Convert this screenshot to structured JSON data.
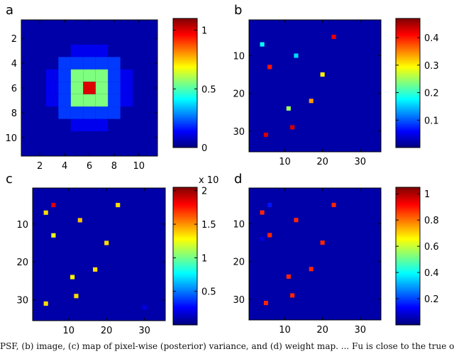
{
  "colors": {
    "background": "#0000a8",
    "jet": [
      "#00007f",
      "#0000ff",
      "#007fff",
      "#00ffff",
      "#7fff7f",
      "#ffff00",
      "#ff7f00",
      "#ff0000",
      "#7f0000"
    ]
  },
  "caption": "PSF, (b) image, (c) map of pixel-wise (posterior) variance, and (d) weight map. ... Fu is close to the true on",
  "chart_data": [
    {
      "panel": "a",
      "type": "heatmap",
      "xlim": [
        0.5,
        11.5
      ],
      "ylim": [
        0.5,
        11.5
      ],
      "xticks": [
        "2",
        "4",
        "6",
        "8",
        "10"
      ],
      "yticks": [
        "2",
        "4",
        "6",
        "8",
        "10"
      ],
      "colorbar": {
        "ticks": [
          "1",
          "0.5",
          "0"
        ],
        "range": [
          0,
          1.1
        ]
      },
      "cells": [
        {
          "x": 6,
          "y": 6,
          "v": 1.0
        },
        {
          "x": 5,
          "y": 5,
          "v": 0.55
        },
        {
          "x": 6,
          "y": 5,
          "v": 0.55
        },
        {
          "x": 7,
          "y": 5,
          "v": 0.55
        },
        {
          "x": 5,
          "y": 6,
          "v": 0.55
        },
        {
          "x": 7,
          "y": 6,
          "v": 0.55
        },
        {
          "x": 5,
          "y": 7,
          "v": 0.55
        },
        {
          "x": 6,
          "y": 7,
          "v": 0.55
        },
        {
          "x": 7,
          "y": 7,
          "v": 0.55
        },
        {
          "x": 4,
          "y": 4,
          "v": 0.2
        },
        {
          "x": 5,
          "y": 4,
          "v": 0.2
        },
        {
          "x": 6,
          "y": 4,
          "v": 0.2
        },
        {
          "x": 7,
          "y": 4,
          "v": 0.2
        },
        {
          "x": 8,
          "y": 4,
          "v": 0.2
        },
        {
          "x": 4,
          "y": 5,
          "v": 0.2
        },
        {
          "x": 8,
          "y": 5,
          "v": 0.2
        },
        {
          "x": 4,
          "y": 6,
          "v": 0.2
        },
        {
          "x": 8,
          "y": 6,
          "v": 0.2
        },
        {
          "x": 4,
          "y": 7,
          "v": 0.2
        },
        {
          "x": 8,
          "y": 7,
          "v": 0.2
        },
        {
          "x": 4,
          "y": 8,
          "v": 0.2
        },
        {
          "x": 5,
          "y": 8,
          "v": 0.2
        },
        {
          "x": 6,
          "y": 8,
          "v": 0.2
        },
        {
          "x": 7,
          "y": 8,
          "v": 0.2
        },
        {
          "x": 8,
          "y": 8,
          "v": 0.2
        },
        {
          "x": 5,
          "y": 3,
          "v": 0.12
        },
        {
          "x": 6,
          "y": 3,
          "v": 0.12
        },
        {
          "x": 7,
          "y": 3,
          "v": 0.12
        },
        {
          "x": 5,
          "y": 9,
          "v": 0.12
        },
        {
          "x": 6,
          "y": 9,
          "v": 0.12
        },
        {
          "x": 7,
          "y": 9,
          "v": 0.12
        },
        {
          "x": 3,
          "y": 5,
          "v": 0.12
        },
        {
          "x": 3,
          "y": 6,
          "v": 0.12
        },
        {
          "x": 3,
          "y": 7,
          "v": 0.12
        },
        {
          "x": 9,
          "y": 5,
          "v": 0.12
        },
        {
          "x": 9,
          "y": 6,
          "v": 0.12
        },
        {
          "x": 9,
          "y": 7,
          "v": 0.12
        }
      ]
    },
    {
      "panel": "b",
      "type": "heatmap",
      "xlim": [
        0.5,
        35.5
      ],
      "ylim": [
        0.5,
        35.5
      ],
      "xticks": [
        "10",
        "20",
        "30"
      ],
      "yticks": [
        "10",
        "20",
        "30"
      ],
      "colorbar": {
        "ticks": [
          "0.4",
          "0.3",
          "0.2",
          "0.1"
        ],
        "range": [
          0,
          0.47
        ]
      },
      "points": [
        {
          "x": 4,
          "y": 7,
          "v": 0.18
        },
        {
          "x": 13,
          "y": 10,
          "v": 0.16
        },
        {
          "x": 23,
          "y": 5,
          "v": 0.42
        },
        {
          "x": 6,
          "y": 13,
          "v": 0.4
        },
        {
          "x": 20,
          "y": 15,
          "v": 0.3
        },
        {
          "x": 17,
          "y": 22,
          "v": 0.34
        },
        {
          "x": 11,
          "y": 24,
          "v": 0.25
        },
        {
          "x": 12,
          "y": 29,
          "v": 0.43
        },
        {
          "x": 5,
          "y": 31,
          "v": 0.43
        }
      ]
    },
    {
      "panel": "c",
      "type": "heatmap",
      "xlim": [
        0.5,
        35.5
      ],
      "ylim": [
        0.5,
        35.5
      ],
      "xticks": [
        "10",
        "20",
        "30"
      ],
      "yticks": [
        "10",
        "20",
        "30"
      ],
      "colorbar": {
        "ticks": [
          "2",
          "1.5",
          "1",
          "0.5"
        ],
        "exponent_label": "x 10",
        "range": [
          0,
          2.05
        ]
      },
      "points": [
        {
          "x": 6,
          "y": 5,
          "v": 1.85
        },
        {
          "x": 4,
          "y": 7,
          "v": 1.35
        },
        {
          "x": 23,
          "y": 5,
          "v": 1.35
        },
        {
          "x": 13,
          "y": 9,
          "v": 1.4
        },
        {
          "x": 6,
          "y": 13,
          "v": 1.25
        },
        {
          "x": 20,
          "y": 15,
          "v": 1.35
        },
        {
          "x": 17,
          "y": 22,
          "v": 1.35
        },
        {
          "x": 11,
          "y": 24,
          "v": 1.3
        },
        {
          "x": 12,
          "y": 29,
          "v": 1.35
        },
        {
          "x": 4,
          "y": 31,
          "v": 1.35
        },
        {
          "x": 30,
          "y": 32,
          "v": 0.2
        }
      ]
    },
    {
      "panel": "d",
      "type": "heatmap",
      "xlim": [
        0.5,
        35.5
      ],
      "ylim": [
        0.5,
        35.5
      ],
      "xticks": [
        "10",
        "20",
        "30"
      ],
      "yticks": [
        "10",
        "20",
        "30"
      ],
      "colorbar": {
        "ticks": [
          "1",
          "0.8",
          "0.6",
          "0.4",
          "0.2"
        ],
        "range": [
          0,
          1.05
        ]
      },
      "points": [
        {
          "x": 6,
          "y": 5,
          "v": 0.15
        },
        {
          "x": 4,
          "y": 7,
          "v": 0.88
        },
        {
          "x": 23,
          "y": 5,
          "v": 0.88
        },
        {
          "x": 13,
          "y": 9,
          "v": 0.88
        },
        {
          "x": 6,
          "y": 13,
          "v": 0.88
        },
        {
          "x": 20,
          "y": 15,
          "v": 0.88
        },
        {
          "x": 17,
          "y": 22,
          "v": 0.88
        },
        {
          "x": 11,
          "y": 24,
          "v": 0.88
        },
        {
          "x": 12,
          "y": 29,
          "v": 0.88
        },
        {
          "x": 5,
          "y": 31,
          "v": 0.88
        },
        {
          "x": 4,
          "y": 14,
          "v": 0.1
        }
      ]
    }
  ]
}
